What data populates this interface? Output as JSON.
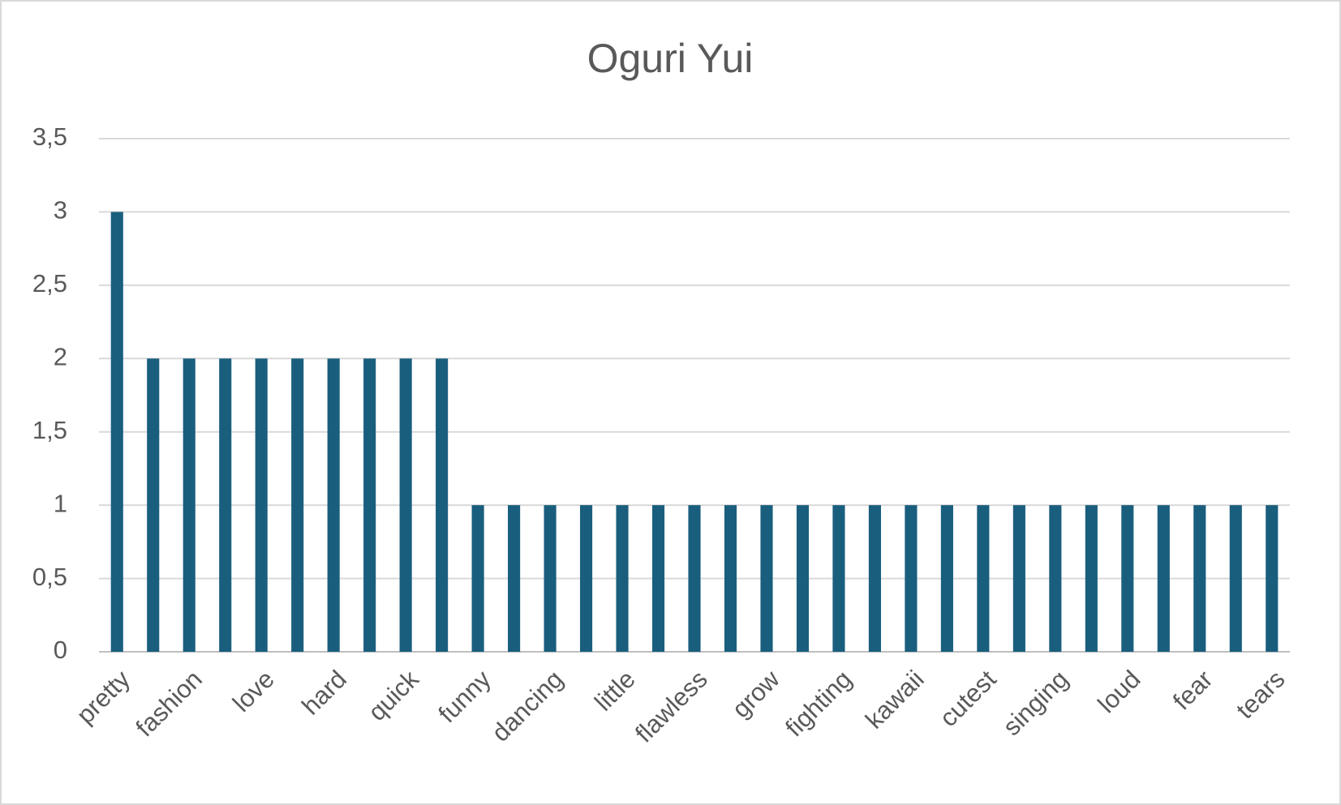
{
  "chart_data": {
    "type": "bar",
    "title": "Oguri Yui",
    "categories": [
      "pretty",
      null,
      "fashion",
      null,
      "love",
      null,
      "hard",
      null,
      "quick",
      null,
      "funny",
      null,
      "dancing",
      null,
      "little",
      null,
      "flawless",
      null,
      "grow",
      null,
      "fighting",
      null,
      "kawaii",
      null,
      "cutest",
      null,
      "singing",
      null,
      "loud",
      null,
      "fear",
      null,
      "tears"
    ],
    "values": [
      3,
      2,
      2,
      2,
      2,
      2,
      2,
      2,
      2,
      2,
      1,
      1,
      1,
      1,
      1,
      1,
      1,
      1,
      1,
      1,
      1,
      1,
      1,
      1,
      1,
      1,
      1,
      1,
      1,
      1,
      1,
      1,
      1
    ],
    "color": "#1a5e7e",
    "ylim": [
      0,
      3.5
    ],
    "yticks": [
      0,
      {
        "value": 0.5,
        "label": "0,5"
      },
      1,
      {
        "value": 1.5,
        "label": "1,5"
      },
      2,
      {
        "value": 2.5,
        "label": "2,5"
      },
      3,
      {
        "value": 3.5,
        "label": "3,5"
      }
    ],
    "grid": true
  }
}
